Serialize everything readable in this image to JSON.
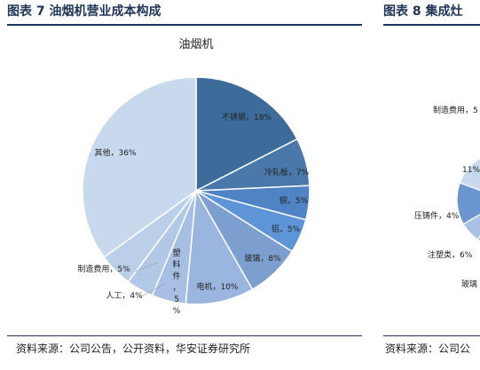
{
  "header": {
    "left_title": "图表 7  油烟机营业成本构成",
    "right_title": "图表 8  集成灶"
  },
  "footer": {
    "left_source": "资料来源：公司公告，公开资料，华安证券研究所",
    "right_source": "资料来源：公司公"
  },
  "chart_data": [
    {
      "type": "pie",
      "title": "油烟机",
      "slices": [
        {
          "label": "不锈钢，18%",
          "value": 18,
          "color": "#3d6c9a"
        },
        {
          "label": "冷轧板，7%",
          "value": 7,
          "color": "#4a78ab"
        },
        {
          "label": "铜，5%",
          "value": 5,
          "color": "#4f83c3"
        },
        {
          "label": "铝，5%",
          "value": 5,
          "color": "#5e95d6"
        },
        {
          "label": "玻璃，8%",
          "value": 8,
          "color": "#7d9fd0"
        },
        {
          "label": "电机，10%",
          "value": 10,
          "color": "#9bb6de"
        },
        {
          "label": "塑料件，5%",
          "value": 5,
          "color": "#a6bfe2"
        },
        {
          "label": "人工，4%",
          "value": 4,
          "color": "#b2c8e7"
        },
        {
          "label": "制造费用，5%",
          "value": 5,
          "color": "#bccfe9"
        },
        {
          "label": "其他，36%",
          "value": 36,
          "color": "#c8d8ed"
        }
      ]
    },
    {
      "type": "pie",
      "title": "",
      "partial": true,
      "visible_labels": [
        "制造费用，5",
        "11%",
        "压铸件，4%",
        "注塑类，6%",
        "玻璃"
      ]
    }
  ]
}
